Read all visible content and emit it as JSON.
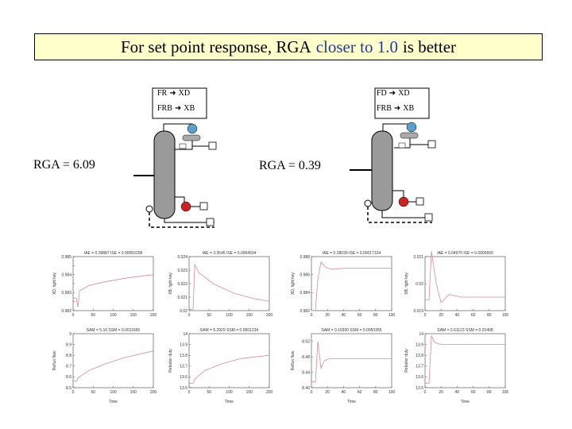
{
  "title": {
    "prefix": "For set point response, RGA ",
    "accent": "closer to 1.0",
    "suffix": " is better"
  },
  "left": {
    "pairing_1": {
      "from": "FR",
      "to": "XD"
    },
    "pairing_2": {
      "from": "FRB",
      "to": "XB"
    },
    "rga_label": "RGA = 6.09"
  },
  "right": {
    "pairing_1": {
      "from": "FD",
      "to": "XD"
    },
    "pairing_2": {
      "from": "FRB",
      "to": "XB"
    },
    "rga_label": "RGA = 0.39"
  },
  "colors": {
    "title_bg": "#ffffcc",
    "accent": "#1f3d99",
    "column": "#9a9a9a",
    "reboiler_valve": "#cc2222",
    "condenser": "#5aa0c8"
  },
  "chart_data": [
    {
      "type": "line",
      "panel": "left-top-left",
      "title": "IAE = 0.39887 ISE = 0.00050158",
      "xlabel": "",
      "ylabel": "XD, light key",
      "xlim": [
        0,
        200
      ],
      "ylim": [
        0.982,
        0.985
      ],
      "yticks": [
        0.982,
        0.9825,
        0.983,
        0.9835,
        0.984,
        0.9845,
        0.985
      ],
      "yticklabels": [
        "0.982",
        "",
        "0.983",
        "",
        "0.984",
        "",
        "0.985"
      ],
      "xticks": [
        0,
        50,
        100,
        150,
        200
      ],
      "xticklabels": [
        "0",
        "50",
        "100",
        "150",
        "200"
      ],
      "series": [
        {
          "values": [
            [
              0,
              0.9827
            ],
            [
              8,
              0.9827
            ],
            [
              12,
              0.9822
            ],
            [
              16,
              0.9831
            ],
            [
              40,
              0.9834
            ],
            [
              80,
              0.9836
            ],
            [
              130,
              0.9838
            ],
            [
              200,
              0.984
            ]
          ]
        }
      ]
    },
    {
      "type": "line",
      "panel": "left-top-right",
      "title": "IAE = 3.3545 ISE = 0.0004504",
      "xlabel": "",
      "ylabel": "XB, light key",
      "xlim": [
        0,
        200
      ],
      "ylim": [
        0.02,
        0.024
      ],
      "yticks": [
        0.02,
        0.021,
        0.022,
        0.023,
        0.024
      ],
      "yticklabels": [
        "0.02",
        "0.021",
        "0.022",
        "0.023",
        "0.024"
      ],
      "xticks": [
        0,
        50,
        100,
        150,
        200
      ],
      "xticklabels": [
        "0",
        "50",
        "100",
        "150",
        "200"
      ],
      "series": [
        {
          "values": [
            [
              0,
              0.0201
            ],
            [
              10,
              0.0201
            ],
            [
              14,
              0.0234
            ],
            [
              25,
              0.0228
            ],
            [
              60,
              0.022
            ],
            [
              110,
              0.0213
            ],
            [
              160,
              0.0209
            ],
            [
              200,
              0.0207
            ]
          ]
        }
      ]
    },
    {
      "type": "line",
      "panel": "left-bottom-left",
      "title": "SAM = 5.16 SSM = 0.0011665",
      "xlabel": "Time",
      "ylabel": "Reflux flow",
      "xlim": [
        0,
        200
      ],
      "ylim": [
        8.5,
        9
      ],
      "yticks": [
        8.5,
        8.6,
        8.7,
        8.8,
        8.9,
        9
      ],
      "yticklabels": [
        "8.5",
        "8.6",
        "8.7",
        "8.8",
        "8.9",
        "9"
      ],
      "xticks": [
        0,
        50,
        100,
        150,
        200
      ],
      "xticklabels": [
        "0",
        "50",
        "100",
        "150",
        "200"
      ],
      "series": [
        {
          "values": [
            [
              0,
              8.56
            ],
            [
              10,
              8.56
            ],
            [
              12,
              8.59
            ],
            [
              40,
              8.66
            ],
            [
              80,
              8.72
            ],
            [
              130,
              8.78
            ],
            [
              200,
              8.84
            ]
          ]
        }
      ]
    },
    {
      "type": "line",
      "panel": "left-bottom-right",
      "title": "SAM = 6.2929 SSM = 0.0001234",
      "xlabel": "Time",
      "ylabel": "Reboiler duty",
      "xlim": [
        0,
        200
      ],
      "ylim": [
        13.5,
        14
      ],
      "yticks": [
        13.5,
        13.6,
        13.7,
        13.8,
        13.9,
        14
      ],
      "yticklabels": [
        "13.5",
        "13.6",
        "13.7",
        "13.8",
        "13.9",
        "14"
      ],
      "xticks": [
        0,
        50,
        100,
        150,
        200
      ],
      "xticklabels": [
        "0",
        "50",
        "100",
        "150",
        "200"
      ],
      "series": [
        {
          "values": [
            [
              0,
              13.54
            ],
            [
              10,
              13.54
            ],
            [
              14,
              13.58
            ],
            [
              40,
              13.66
            ],
            [
              80,
              13.72
            ],
            [
              130,
              13.77
            ],
            [
              200,
              13.8
            ]
          ]
        }
      ]
    },
    {
      "type": "line",
      "panel": "right-top-left",
      "title": "IAE = 0.28039 ISE = 0.00017124",
      "xlabel": "",
      "ylabel": "XD, light key",
      "xlim": [
        0,
        100
      ],
      "ylim": [
        0.982,
        0.988
      ],
      "yticks": [
        0.982,
        0.984,
        0.986,
        0.988
      ],
      "yticklabels": [
        "0.982",
        "0.984",
        "0.986",
        "0.988"
      ],
      "xticks": [
        0,
        20,
        40,
        60,
        80,
        100
      ],
      "xticklabels": [
        "0",
        "20",
        "40",
        "60",
        "80",
        "100"
      ],
      "series": [
        {
          "values": [
            [
              0,
              0.982
            ],
            [
              5,
              0.982
            ],
            [
              8,
              0.9855
            ],
            [
              12,
              0.9874
            ],
            [
              18,
              0.9868
            ],
            [
              26,
              0.9866
            ],
            [
              40,
              0.9867
            ],
            [
              100,
              0.9867
            ]
          ]
        }
      ]
    },
    {
      "type": "line",
      "panel": "right-top-right",
      "title": "IAE = 0.04975 ISE = 0.0000600",
      "xlabel": "",
      "ylabel": "XB, light key",
      "xlim": [
        0,
        100
      ],
      "ylim": [
        0.019,
        0.021
      ],
      "yticks": [
        0.019,
        0.02,
        0.021
      ],
      "yticklabels": [
        "0.019",
        "0.02",
        "0.021"
      ],
      "xticks": [
        0,
        20,
        40,
        60,
        80,
        100
      ],
      "xticklabels": [
        "0",
        "20",
        "40",
        "60",
        "80",
        "100"
      ],
      "series": [
        {
          "values": [
            [
              0,
              0.0194
            ],
            [
              5,
              0.0194
            ],
            [
              8,
              0.0212
            ],
            [
              14,
              0.02
            ],
            [
              20,
              0.0193
            ],
            [
              30,
              0.0196
            ],
            [
              45,
              0.0195
            ],
            [
              100,
              0.0195
            ]
          ]
        }
      ]
    },
    {
      "type": "line",
      "panel": "right-bottom-left",
      "title": "SAM = 0.10300 SSM = 0.0050355",
      "xlabel": "Time",
      "ylabel": "Reflux flow",
      "xlim": [
        0,
        100
      ],
      "ylim": [
        8.4,
        8.54
      ],
      "yticks": [
        8.4,
        8.44,
        8.48,
        8.52
      ],
      "yticklabels": [
        "8.40",
        "8.44",
        "8.48",
        "8.52"
      ],
      "xticks": [
        0,
        20,
        40,
        60,
        80,
        100
      ],
      "xticklabels": [
        "0",
        "20",
        "40",
        "60",
        "80",
        "100"
      ],
      "series": [
        {
          "values": [
            [
              0,
              8.415
            ],
            [
              5,
              8.415
            ],
            [
              8,
              8.52
            ],
            [
              12,
              8.45
            ],
            [
              16,
              8.47
            ],
            [
              22,
              8.475
            ],
            [
              40,
              8.475
            ],
            [
              100,
              8.475
            ]
          ]
        }
      ]
    },
    {
      "type": "line",
      "panel": "right-bottom-right",
      "title": "SAM = 0.61123 SSM = 0.01408",
      "xlabel": "Time",
      "ylabel": "Reboiler duty",
      "xlim": [
        0,
        100
      ],
      "ylim": [
        13.5,
        14
      ],
      "yticks": [
        13.5,
        13.6,
        13.7,
        13.8,
        13.9,
        14
      ],
      "yticklabels": [
        "13.5",
        "13.6",
        "13.7",
        "13.8",
        "13.9",
        "14"
      ],
      "xticks": [
        0,
        20,
        40,
        60,
        80,
        100
      ],
      "xticklabels": [
        "0",
        "20",
        "40",
        "60",
        "80",
        "100"
      ],
      "series": [
        {
          "values": [
            [
              0,
              13.54
            ],
            [
              5,
              13.54
            ],
            [
              8,
              13.98
            ],
            [
              12,
              13.92
            ],
            [
              20,
              13.9
            ],
            [
              40,
              13.9
            ],
            [
              100,
              13.9
            ]
          ]
        }
      ]
    }
  ]
}
